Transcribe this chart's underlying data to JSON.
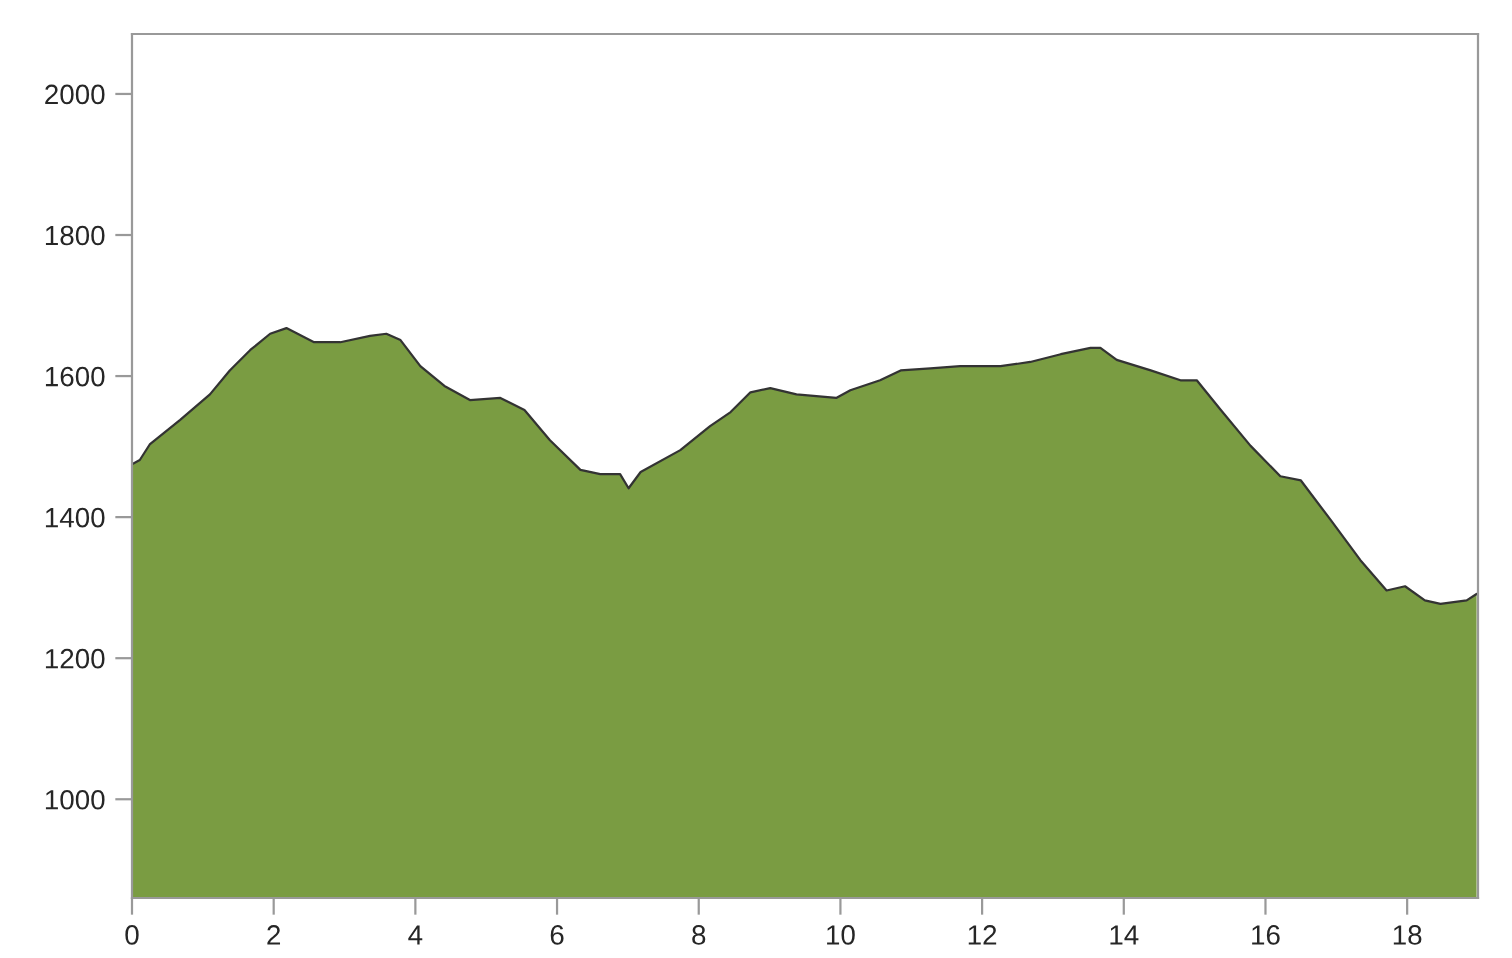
{
  "chart_data": {
    "type": "area",
    "xlim": [
      0,
      19.0
    ],
    "ylim": [
      860,
      2085
    ],
    "xticks": [
      0,
      2,
      4,
      6,
      8,
      10,
      12,
      14,
      16,
      18
    ],
    "yticks": [
      1000,
      1200,
      1400,
      1600,
      1800,
      2000
    ],
    "grid": false,
    "series": [
      {
        "color": "#7a9c42",
        "x": [
          0,
          0.11,
          0.25,
          0.68,
          1.1,
          1.38,
          1.67,
          1.95,
          2.18,
          2.57,
          2.94,
          3.36,
          3.59,
          3.79,
          4.07,
          4.41,
          4.77,
          5.2,
          5.54,
          5.9,
          6.33,
          6.61,
          6.89,
          7.01,
          7.18,
          7.74,
          8.16,
          8.45,
          8.73,
          9.01,
          9.38,
          9.94,
          10.14,
          10.56,
          10.85,
          11.27,
          11.69,
          12.26,
          12.68,
          13.11,
          13.53,
          13.67,
          13.9,
          14.38,
          14.8,
          15.03,
          15.37,
          15.79,
          16.21,
          16.5,
          16.92,
          17.34,
          17.71,
          17.97,
          18.25,
          18.47,
          18.84,
          18.98
        ],
        "values": [
          1475,
          1481,
          1503,
          1538,
          1574,
          1608,
          1637,
          1660,
          1668,
          1648,
          1648,
          1657,
          1660,
          1651,
          1614,
          1586,
          1566,
          1569,
          1552,
          1509,
          1467,
          1461,
          1461,
          1441,
          1464,
          1495,
          1529,
          1549,
          1577,
          1583,
          1574,
          1569,
          1580,
          1594,
          1608,
          1611,
          1614,
          1614,
          1620,
          1631,
          1640,
          1640,
          1623,
          1608,
          1594,
          1594,
          1552,
          1501,
          1458,
          1452,
          1396,
          1339,
          1296,
          1302,
          1282,
          1277,
          1282,
          1291
        ]
      }
    ]
  }
}
